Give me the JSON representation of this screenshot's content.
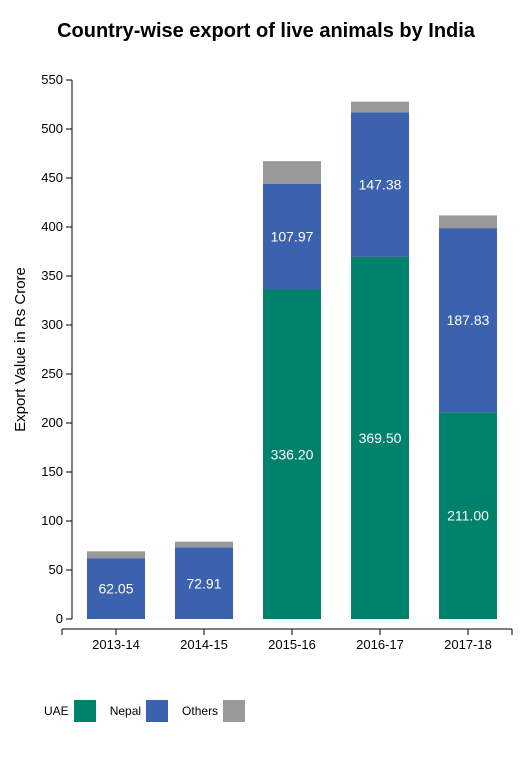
{
  "chart_data": {
    "type": "bar",
    "stacked": true,
    "title": "Country-wise export of live animals by India",
    "xlabel": "",
    "ylabel": "Export Value in Rs Crore",
    "categories": [
      "2013-14",
      "2014-15",
      "2015-16",
      "2016-17",
      "2017-18"
    ],
    "ylim": [
      0,
      550
    ],
    "yticks": [
      0,
      50,
      100,
      150,
      200,
      250,
      300,
      350,
      400,
      450,
      500,
      550
    ],
    "series": [
      {
        "name": "UAE",
        "color": "#00826a",
        "values": [
          0,
          0,
          336.2,
          369.5,
          211.0
        ],
        "labels": [
          "",
          "",
          "336.20",
          "369.50",
          "211.00"
        ]
      },
      {
        "name": "Nepal",
        "color": "#3b62ae",
        "values": [
          62.05,
          72.91,
          107.97,
          147.38,
          187.83
        ],
        "labels": [
          "62.05",
          "72.91",
          "107.97",
          "147.38",
          "187.83"
        ]
      },
      {
        "name": "Others",
        "color": "#999999",
        "values": [
          7,
          6,
          23,
          11,
          13
        ],
        "labels": [
          "",
          "",
          "",
          "",
          ""
        ]
      }
    ],
    "legend_position": "bottom-left",
    "grid": false
  }
}
